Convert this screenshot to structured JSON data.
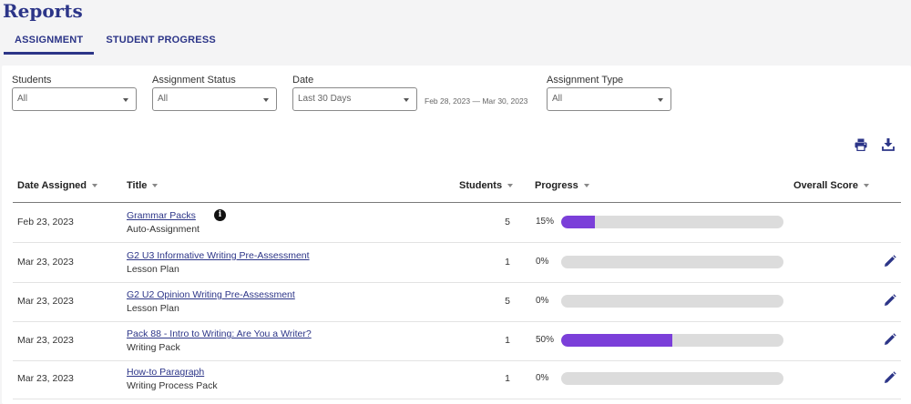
{
  "page": {
    "title": "Reports"
  },
  "tabs": [
    {
      "label": "ASSIGNMENT",
      "active": true
    },
    {
      "label": "STUDENT PROGRESS",
      "active": false
    }
  ],
  "filters": {
    "students": {
      "label": "Students",
      "value": "All"
    },
    "status": {
      "label": "Assignment Status",
      "value": "All"
    },
    "date": {
      "label": "Date",
      "value": "Last 30 Days",
      "range": "Feb 28, 2023 — Mar 30, 2023"
    },
    "type": {
      "label": "Assignment Type",
      "value": "All"
    }
  },
  "toolbar": {
    "print_icon": "print-icon",
    "download_icon": "download-icon"
  },
  "table": {
    "headers": {
      "date": "Date Assigned",
      "title": "Title",
      "students": "Students",
      "progress": "Progress",
      "score": "Overall Score"
    },
    "rows": [
      {
        "date": "Feb 23, 2023",
        "title": "Grammar Packs",
        "type": "Auto-Assignment",
        "students": "5",
        "progress_label": "15%",
        "progress": 0.15,
        "has_info": true,
        "editable": false
      },
      {
        "date": "Mar 23, 2023",
        "title": "G2 U3 Informative Writing Pre-Assessment",
        "type": "Lesson Plan",
        "students": "1",
        "progress_label": "0%",
        "progress": 0,
        "has_info": false,
        "editable": true
      },
      {
        "date": "Mar 23, 2023",
        "title": "G2 U2 Opinion Writing Pre-Assessment",
        "type": "Lesson Plan",
        "students": "5",
        "progress_label": "0%",
        "progress": 0,
        "has_info": false,
        "editable": true
      },
      {
        "date": "Mar 23, 2023",
        "title": "Pack 88 - Intro to Writing: Are You a Writer?",
        "type": "Writing Pack",
        "students": "1",
        "progress_label": "50%",
        "progress": 0.5,
        "has_info": false,
        "editable": true
      },
      {
        "date": "Mar 23, 2023",
        "title": "How-to Paragraph",
        "type": "Writing Process Pack",
        "students": "1",
        "progress_label": "0%",
        "progress": 0,
        "has_info": false,
        "editable": true
      }
    ]
  },
  "colors": {
    "brand": "#2c3588",
    "progress_fill": "#7b3fd9",
    "progress_track": "#dcdcdc"
  }
}
